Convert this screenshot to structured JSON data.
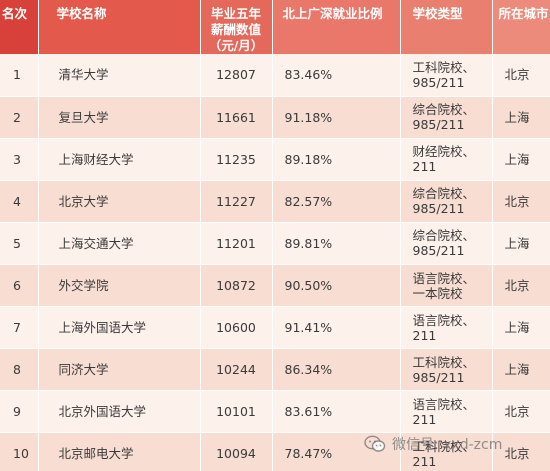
{
  "headers": {
    "rank": "名次",
    "name": "学校名称",
    "pay_line1": "毕业五年",
    "pay_line2": "薪酬数值",
    "pay_line3": "（元/月）",
    "ratio": "北上广深就业比例",
    "type": "学校类型",
    "city": "所在城市"
  },
  "rows": [
    {
      "rank": "1",
      "name": "清华大学",
      "pay": "12807",
      "ratio": "83.46%",
      "type1": "工科院校、",
      "type2": "985/211",
      "city": "北京"
    },
    {
      "rank": "2",
      "name": "复旦大学",
      "pay": "11661",
      "ratio": "91.18%",
      "type1": "综合院校、",
      "type2": "985/211",
      "city": "上海"
    },
    {
      "rank": "3",
      "name": "上海财经大学",
      "pay": "11235",
      "ratio": "89.18%",
      "type1": "财经院校、",
      "type2": "211",
      "city": "上海"
    },
    {
      "rank": "4",
      "name": "北京大学",
      "pay": "11227",
      "ratio": "82.57%",
      "type1": "综合院校、",
      "type2": "985/211",
      "city": "北京"
    },
    {
      "rank": "5",
      "name": "上海交通大学",
      "pay": "11201",
      "ratio": "89.81%",
      "type1": "综合院校、",
      "type2": "985/211",
      "city": "上海"
    },
    {
      "rank": "6",
      "name": "外交学院",
      "pay": "10872",
      "ratio": "90.50%",
      "type1": "语言院校、",
      "type2": "一本院校",
      "city": "北京"
    },
    {
      "rank": "7",
      "name": "上海外国语大学",
      "pay": "10600",
      "ratio": "91.41%",
      "type1": "语言院校、",
      "type2": "211",
      "city": "上海"
    },
    {
      "rank": "8",
      "name": "同济大学",
      "pay": "10244",
      "ratio": "86.34%",
      "type1": "工科院校、",
      "type2": "985/211",
      "city": "上海"
    },
    {
      "rank": "9",
      "name": "北京外国语大学",
      "pay": "10101",
      "ratio": "83.61%",
      "type1": "语言院校、",
      "type2": "211",
      "city": "北京"
    },
    {
      "rank": "10",
      "name": "北京邮电大学",
      "pay": "10094",
      "ratio": "78.47%",
      "type1": "工科院校、",
      "type2": "211",
      "city": "北京"
    }
  ],
  "watermark": {
    "text": "微信号: xxd-zcm",
    "icon": "wechat-icon"
  },
  "colors": {
    "header_dark": "#d8413a",
    "header_light": "#ec8b7b",
    "row_odd": "#fdf1ec",
    "row_even": "#f8ddd3"
  }
}
